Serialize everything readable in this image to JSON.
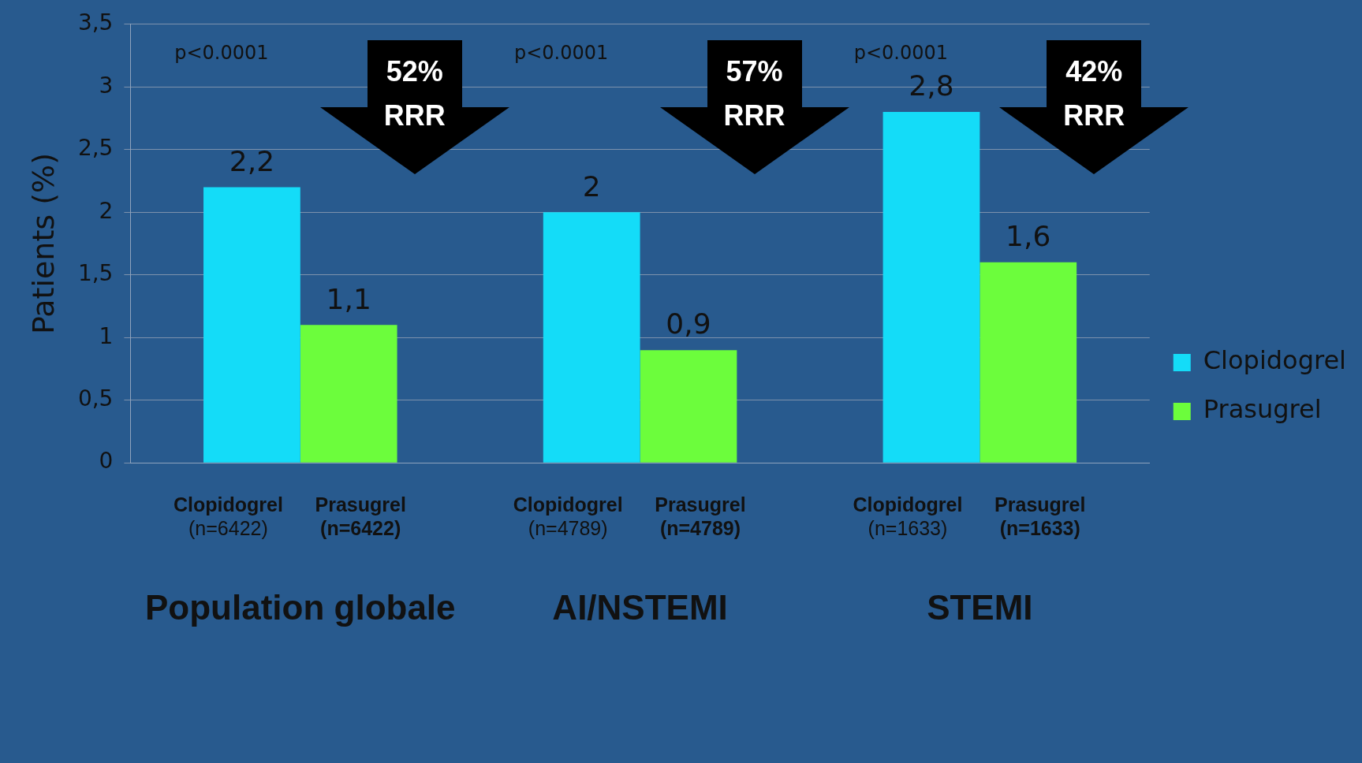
{
  "chart_data": {
    "type": "bar",
    "ylabel": "Patients (%)",
    "categories": [
      "Population globale",
      "AI/NSTEMI",
      "STEMI"
    ],
    "series": [
      {
        "name": "Clopidogrel",
        "color": "#14dcf8",
        "values": [
          2.2,
          2.0,
          2.8
        ],
        "value_labels": [
          "2,2",
          "2",
          "2,8"
        ]
      },
      {
        "name": "Prasugrel",
        "color": "#6cfd3c",
        "values": [
          1.1,
          0.9,
          1.6
        ],
        "value_labels": [
          "1,1",
          "0,9",
          "1,6"
        ]
      }
    ],
    "ylim": [
      0,
      3.5
    ],
    "yticks": [
      0,
      {
        "value": 0.5,
        "label": "0,5"
      },
      1,
      {
        "value": 1.5,
        "label": "1,5"
      },
      2,
      {
        "value": 2.5,
        "label": "2,5"
      },
      3,
      {
        "value": 3.5,
        "label": "3,5"
      }
    ],
    "grid": "y",
    "legend": "right",
    "annotations": [
      "p<0.0001",
      "p<0.0001",
      "p<0.0001",
      "52%\nRRR",
      "57%\nRRR",
      "42%\nRRR",
      "Clopidogrel\n(n=6422)",
      "Prasugrel\n(n=6422)",
      "Clopidogrel\n(n=4789)",
      "Prasugrel\n(n=4789)",
      "Clopidogrel\n(n=1633)",
      "Prasugrel\n(n=1633)"
    ]
  }
}
